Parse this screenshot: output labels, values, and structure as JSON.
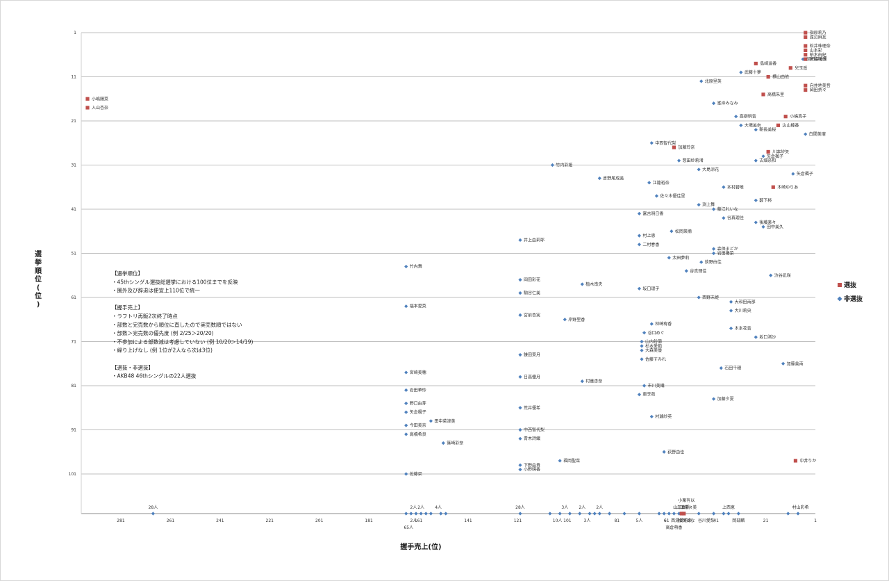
{
  "chart_data": {
    "type": "scatter",
    "xlabel": "握手売上(位)",
    "ylabel": "選挙順位(位)",
    "xlim": [
      1,
      300
    ],
    "ylim": [
      1,
      110
    ],
    "x_reversed": true,
    "x_ticks": [
      1,
      21,
      41,
      61,
      81,
      101,
      121,
      141,
      161,
      181,
      201,
      221,
      241,
      261,
      281
    ],
    "y_ticks": [
      1,
      11,
      21,
      31,
      41,
      51,
      61,
      71,
      81,
      91,
      101
    ],
    "legend": [
      {
        "key": "senbatsu",
        "label": "選抜",
        "color": "#c0504d"
      },
      {
        "key": "hisenbatsu",
        "label": "非選抜",
        "color": "#4f81bd"
      }
    ],
    "notes": [
      "【選挙順位】",
      "・45thシングル選抜総選挙における100位までを反映",
      "・圏外及び辞退は便宜上110位で統一",
      "",
      "【握手売上】",
      "・ラフトリ再販2次終了時点",
      "・部数と完売数から順位に直したので実売数順ではない",
      "・部数＞完売数の優先度 (例 2/25＞20/20)",
      "・不参加による部数減は考慮していない (例 10/20＞14/19)",
      "・繰り上げなし (例 1位が2人なら次は3位)",
      "",
      "【選抜・非選抜】",
      "・AKB48 46thシングルの22人選抜"
    ],
    "senbatsu": [
      {
        "x": 5,
        "y": 1,
        "name": "指原莉乃"
      },
      {
        "x": 5,
        "y": 2,
        "name": "渡辺麻友"
      },
      {
        "x": 5,
        "y": 4,
        "name": "松井珠理奈"
      },
      {
        "x": 5,
        "y": 5,
        "name": "山本彩"
      },
      {
        "x": 5,
        "y": 6,
        "name": "柏木由紀"
      },
      {
        "x": 5,
        "y": 7,
        "name": "宮脇咲良"
      },
      {
        "x": 25,
        "y": 8,
        "name": "島崎遥香"
      },
      {
        "x": 11,
        "y": 9,
        "name": "兒玉遥"
      },
      {
        "x": 20,
        "y": 11,
        "name": "横山由依"
      },
      {
        "x": 5,
        "y": 13,
        "name": "向井地美音"
      },
      {
        "x": 5,
        "y": 14,
        "name": "岡田奈々"
      },
      {
        "x": 22,
        "y": 15,
        "name": "高橋朱里"
      },
      {
        "x": 13,
        "y": 20,
        "name": "小嶋真子"
      },
      {
        "x": 16,
        "y": 22,
        "name": "込山榛香"
      },
      {
        "x": 58,
        "y": 27,
        "name": "加藤玲奈"
      },
      {
        "x": 20,
        "y": 28,
        "name": "川本紗矢"
      },
      {
        "x": 18,
        "y": 36,
        "name": "木崎ゆりあ"
      },
      {
        "x": 9,
        "y": 98,
        "name": "中井りか"
      },
      {
        "x": 299,
        "y": 16,
        "name": "小嶋陽菜"
      },
      {
        "x": 299,
        "y": 18,
        "name": "入山杏奈"
      }
    ],
    "hisenbatsu": [
      {
        "x": 6,
        "y": 7,
        "name": "須田亜香里"
      },
      {
        "x": 31,
        "y": 10,
        "name": "武藤十夢"
      },
      {
        "x": 47,
        "y": 12,
        "name": "北原里英"
      },
      {
        "x": 42,
        "y": 17,
        "name": "峯岸みなみ"
      },
      {
        "x": 33,
        "y": 20,
        "name": "高柳明音"
      },
      {
        "x": 31,
        "y": 22,
        "name": "大場美奈"
      },
      {
        "x": 25,
        "y": 23,
        "name": "朝長美桜"
      },
      {
        "x": 5,
        "y": 24,
        "name": "白間美瑠"
      },
      {
        "x": 67,
        "y": 26,
        "name": "中西智代梨"
      },
      {
        "x": 22,
        "y": 29,
        "name": "矢倉楓子"
      },
      {
        "x": 25,
        "y": 30,
        "name": "古畑奈和"
      },
      {
        "x": 56,
        "y": 30,
        "name": "惣田紗莉渚"
      },
      {
        "x": 107,
        "y": 31,
        "name": "竹内彩姫"
      },
      {
        "x": 48,
        "y": 32,
        "name": "大島涼花"
      },
      {
        "x": 10,
        "y": 33,
        "name": "矢倉楓子"
      },
      {
        "x": 88,
        "y": 34,
        "name": "倉野尾成美"
      },
      {
        "x": 68,
        "y": 35,
        "name": "江籠裕奈"
      },
      {
        "x": 38,
        "y": 36,
        "name": "本村碧唯"
      },
      {
        "x": 65,
        "y": 38,
        "name": "佐々木優佳里"
      },
      {
        "x": 25,
        "y": 39,
        "name": "薮下柊"
      },
      {
        "x": 48,
        "y": 40,
        "name": "渕上舞"
      },
      {
        "x": 42,
        "y": 41,
        "name": "藤江れいな"
      },
      {
        "x": 72,
        "y": 42,
        "name": "富吉明日香"
      },
      {
        "x": 38,
        "y": 43,
        "name": "谷真理佳"
      },
      {
        "x": 25,
        "y": 44,
        "name": "後藤楽々"
      },
      {
        "x": 22,
        "y": 45,
        "name": "田中美久"
      },
      {
        "x": 59,
        "y": 46,
        "name": "松岡菜摘"
      },
      {
        "x": 72,
        "y": 47,
        "name": "村上恵"
      },
      {
        "x": 120,
        "y": 48,
        "name": "井上由莉耶"
      },
      {
        "x": 72,
        "y": 49,
        "name": "二村春香"
      },
      {
        "x": 42,
        "y": 50,
        "name": "森保まどか"
      },
      {
        "x": 42,
        "y": 51,
        "name": "岩田陽菜"
      },
      {
        "x": 60,
        "y": 52,
        "name": "太田夢莉"
      },
      {
        "x": 47,
        "y": 53,
        "name": "荻野由佳"
      },
      {
        "x": 166,
        "y": 54,
        "name": "竹内舞"
      },
      {
        "x": 53,
        "y": 55,
        "name": "谷真理佳"
      },
      {
        "x": 19,
        "y": 56,
        "name": "渋谷凪咲"
      },
      {
        "x": 120,
        "y": 57,
        "name": "岡田彩花"
      },
      {
        "x": 95,
        "y": 58,
        "name": "植木南央"
      },
      {
        "x": 72,
        "y": 59,
        "name": "坂口理子"
      },
      {
        "x": 120,
        "y": 60,
        "name": "駒谷仁美"
      },
      {
        "x": 48,
        "y": 61,
        "name": "西野未姫"
      },
      {
        "x": 35,
        "y": 62,
        "name": "大和田南那"
      },
      {
        "x": 166,
        "y": 63,
        "name": "福本愛菜"
      },
      {
        "x": 35,
        "y": 64,
        "name": "大川莉央"
      },
      {
        "x": 120,
        "y": 65,
        "name": "宮前杏実"
      },
      {
        "x": 102,
        "y": 66,
        "name": "岸野里香"
      },
      {
        "x": 67,
        "y": 67,
        "name": "林崎宥香"
      },
      {
        "x": 35,
        "y": 68,
        "name": "木本花音"
      },
      {
        "x": 70,
        "y": 69,
        "name": "谷口めぐ"
      },
      {
        "x": 25,
        "y": 70,
        "name": "坂口渚沙"
      },
      {
        "x": 71,
        "y": 71,
        "name": "山内鈴蘭"
      },
      {
        "x": 71,
        "y": 72,
        "name": "杉本愛莉"
      },
      {
        "x": 71,
        "y": 73,
        "name": "大森美優"
      },
      {
        "x": 120,
        "y": 74,
        "name": "鎌田菜月"
      },
      {
        "x": 71,
        "y": 75,
        "name": "佐藤すみれ"
      },
      {
        "x": 14,
        "y": 76,
        "name": "加藤美南"
      },
      {
        "x": 39,
        "y": 77,
        "name": "石田千穂"
      },
      {
        "x": 166,
        "y": 78,
        "name": "宮崎美穂"
      },
      {
        "x": 120,
        "y": 79,
        "name": "日高優月"
      },
      {
        "x": 95,
        "y": 80,
        "name": "村重杏奈"
      },
      {
        "x": 70,
        "y": 81,
        "name": "市川美織"
      },
      {
        "x": 166,
        "y": 82,
        "name": "岩田華怜"
      },
      {
        "x": 72,
        "y": 83,
        "name": "東李苑"
      },
      {
        "x": 42,
        "y": 84,
        "name": "加藤夕夏"
      },
      {
        "x": 166,
        "y": 85,
        "name": "野口由芽"
      },
      {
        "x": 120,
        "y": 86,
        "name": "荒井優希"
      },
      {
        "x": 166,
        "y": 87,
        "name": "矢倉楓子"
      },
      {
        "x": 67,
        "y": 88,
        "name": "村瀬紗英"
      },
      {
        "x": 156,
        "y": 89,
        "name": "田中菜津美"
      },
      {
        "x": 166,
        "y": 90,
        "name": "今田美奈"
      },
      {
        "x": 120,
        "y": 91,
        "name": "中西智代梨"
      },
      {
        "x": 166,
        "y": 92,
        "name": "高橋希良"
      },
      {
        "x": 120,
        "y": 93,
        "name": "青木詩織"
      },
      {
        "x": 151,
        "y": 94,
        "name": "篠崎彩奈"
      },
      {
        "x": 62,
        "y": 96,
        "name": "荻野由佳"
      },
      {
        "x": 104,
        "y": 98,
        "name": "福岡聖菜"
      },
      {
        "x": 120,
        "y": 99,
        "name": "下野由貴"
      },
      {
        "x": 120,
        "y": 100,
        "name": "小野晴香"
      },
      {
        "x": 166,
        "y": 101,
        "name": "佐藤栞"
      }
    ],
    "bottom_points_x": [
      268,
      166,
      164,
      162,
      160,
      158,
      156,
      152,
      150,
      120,
      108,
      104,
      100,
      96,
      92,
      90,
      88,
      84,
      78,
      72,
      64,
      62,
      60,
      58,
      56,
      55,
      54,
      48,
      42,
      38,
      36,
      32,
      12,
      8
    ],
    "bottom_senbatsu_x": [
      55,
      54
    ],
    "bottom_labels_top": [
      {
        "x": 268,
        "text": "28人"
      },
      {
        "x": 163,
        "text": "2人"
      },
      {
        "x": 160,
        "text": "2人"
      },
      {
        "x": 153,
        "text": "4人"
      },
      {
        "x": 120,
        "text": "28人"
      },
      {
        "x": 102,
        "text": "3人"
      },
      {
        "x": 95,
        "text": "2人"
      },
      {
        "x": 88,
        "text": "2人"
      },
      {
        "x": 55,
        "text": "山口真帆"
      },
      {
        "x": 53,
        "text": "山田菜々美"
      },
      {
        "x": 53,
        "text": "小栗有以"
      },
      {
        "x": 36,
        "text": "上西恵"
      },
      {
        "x": 7,
        "text": "村山彩希"
      }
    ],
    "bottom_labels_bottom": [
      {
        "x": 163,
        "text": "2人"
      },
      {
        "x": 165,
        "text": "65人"
      },
      {
        "x": 105,
        "text": "10人"
      },
      {
        "x": 93,
        "text": "3人"
      },
      {
        "x": 72,
        "text": "5人"
      },
      {
        "x": 61,
        "text": "61"
      },
      {
        "x": 53,
        "text": "松岡はな"
      },
      {
        "x": 55,
        "text": "西湯愛莉奈"
      },
      {
        "x": 58,
        "text": "高倉萌香"
      },
      {
        "x": 45,
        "text": "谷川愛梨"
      },
      {
        "x": 32,
        "text": "岡部麟"
      }
    ]
  }
}
